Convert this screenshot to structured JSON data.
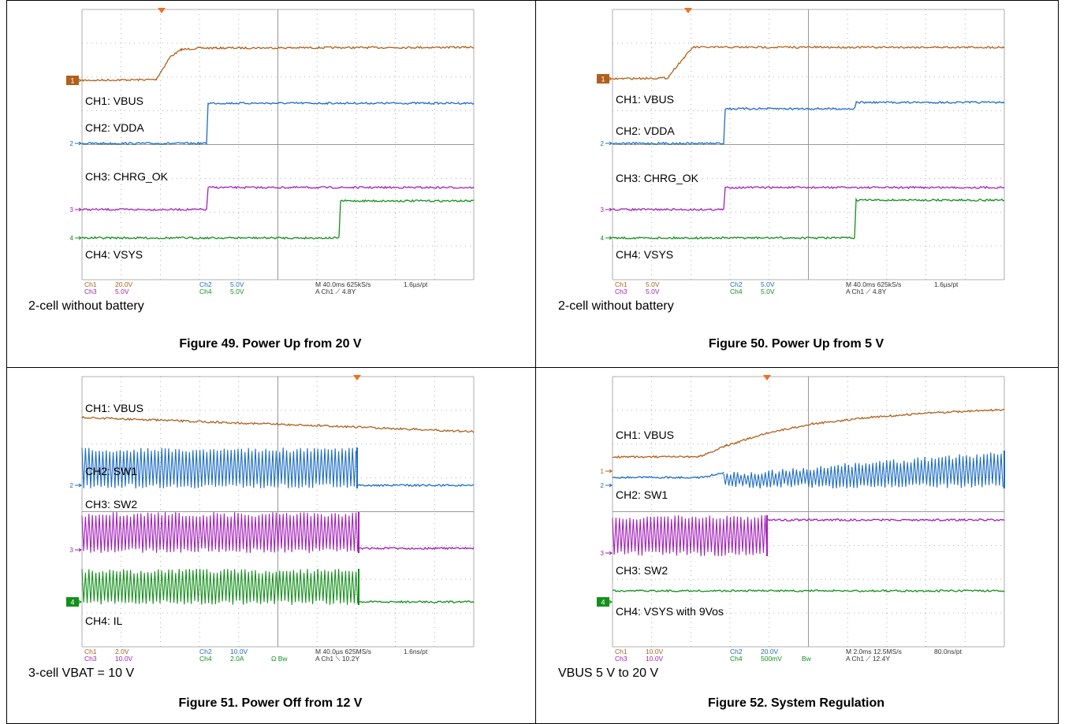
{
  "figures": [
    {
      "scope": {
        "channels": [
          "CH1: VBUS",
          "CH2: VDDA",
          "CH3: CHRG_OK",
          "CH4: VSYS"
        ],
        "markers": [
          "1",
          "2",
          "3",
          "4"
        ],
        "readout": [
          "Ch1",
          "20.0V",
          "Ch3",
          "5.0V",
          "Ch2",
          "5.0V",
          "Ch4",
          "5.0V",
          "M 40.0ms 625kS/s",
          "1.6µs/pt",
          "A  Ch1  ⟋  4.8Y"
        ]
      },
      "caption": "2-cell without battery",
      "title": "Figure 49. Power Up from 20 V"
    },
    {
      "scope": {
        "channels": [
          "CH1: VBUS",
          "CH2: VDDA",
          "CH3: CHRG_OK",
          "CH4: VSYS"
        ],
        "markers": [
          "1",
          "2",
          "3",
          "4"
        ],
        "readout": [
          "Ch1",
          "5.0V",
          "Ch3",
          "5.0V",
          "Ch2",
          "5.0V",
          "Ch4",
          "5.0V",
          "M 40.0ms 625kS/s",
          "1.6µs/pt",
          "A  Ch1  ⟋  4.8Y"
        ]
      },
      "caption": "2-cell without battery",
      "title": "Figure 50. Power Up from 5 V"
    },
    {
      "scope": {
        "channels": [
          "CH1: VBUS",
          "CH2: SW1",
          "CH3: SW2",
          "CH4: IL"
        ],
        "markers": [
          "2",
          "3",
          "4"
        ],
        "readout": [
          "Ch1",
          "2.0V",
          "Ch3",
          "10.0V",
          "Ch2",
          "10.0V",
          "Ch4",
          "2.0A",
          "M 40.0µs 625MS/s",
          "1.6ns/pt",
          "A  Ch1  ⟍  10.2Y",
          "Ω  Bw"
        ]
      },
      "caption": "3-cell VBAT = 10 V",
      "title": "Figure 51. Power Off from 12 V"
    },
    {
      "scope": {
        "channels": [
          "CH1: VBUS",
          "CH2: SW1",
          "CH3: SW2",
          "CH4: VSYS with 9Vos"
        ],
        "markers": [
          "1",
          "2",
          "3",
          "4"
        ],
        "readout": [
          "Ch1",
          "10.0V",
          "Ch3",
          "10.0V",
          "Ch2",
          "20.0V",
          "Ch4",
          "500mV",
          "M 2.0ms 12.5MS/s",
          "80.0ns/pt",
          "A  Ch1  ⟋  12.4Y",
          "Bw"
        ]
      },
      "caption": "VBUS 5 V to 20 V",
      "title": "Figure 52. System Regulation"
    }
  ]
}
